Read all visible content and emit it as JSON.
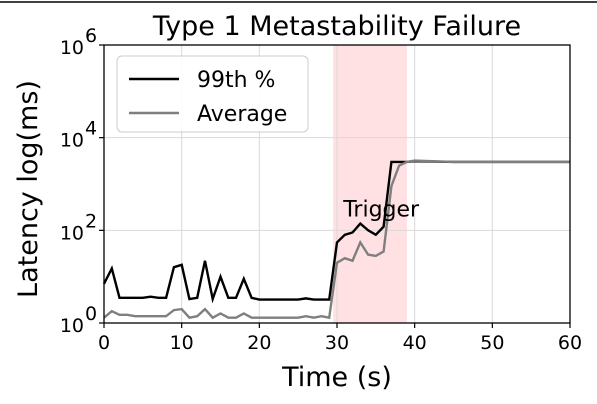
{
  "chart_data": {
    "type": "line",
    "title": "Type 1 Metastability Failure",
    "xlabel": "Time (s)",
    "ylabel": "Latency log(ms)",
    "xlim": [
      0,
      60
    ],
    "ylim": [
      1,
      1000000
    ],
    "yscale": "log",
    "xticks": [
      "0",
      "10",
      "20",
      "30",
      "40",
      "50",
      "60"
    ],
    "yticks": [
      {
        "value": 1,
        "base": "10",
        "exp": "0"
      },
      {
        "value": 100,
        "base": "10",
        "exp": "2"
      },
      {
        "value": 10000,
        "base": "10",
        "exp": "4"
      },
      {
        "value": 1000000,
        "base": "10",
        "exp": "6"
      }
    ],
    "grid": true,
    "legend_position": "top-left",
    "shaded_region": {
      "x0": 29.5,
      "x1": 39,
      "color": "#ffe0e3"
    },
    "annotations": [
      {
        "text": "Trigger",
        "x": 30.8,
        "y": 200
      }
    ],
    "series": [
      {
        "name": "99th %",
        "color": "#000000",
        "points": [
          [
            0,
            7
          ],
          [
            1,
            15
          ],
          [
            2,
            3.5
          ],
          [
            3,
            3.5
          ],
          [
            4,
            3.5
          ],
          [
            5,
            3.5
          ],
          [
            6,
            3.7
          ],
          [
            7,
            3.5
          ],
          [
            8,
            3.5
          ],
          [
            9,
            16
          ],
          [
            10,
            18
          ],
          [
            11,
            3.3
          ],
          [
            12,
            3.5
          ],
          [
            13,
            22
          ],
          [
            14,
            3.3
          ],
          [
            15,
            10
          ],
          [
            16,
            3.5
          ],
          [
            17,
            3.5
          ],
          [
            18,
            9
          ],
          [
            19,
            3.5
          ],
          [
            20,
            3.2
          ],
          [
            21,
            3.2
          ],
          [
            22,
            3.2
          ],
          [
            23,
            3.2
          ],
          [
            24,
            3.2
          ],
          [
            25,
            3.2
          ],
          [
            26,
            3.4
          ],
          [
            27,
            3.2
          ],
          [
            28,
            3.2
          ],
          [
            29,
            3.2
          ],
          [
            30,
            55
          ],
          [
            31,
            80
          ],
          [
            32,
            90
          ],
          [
            33,
            140
          ],
          [
            34,
            100
          ],
          [
            35,
            80
          ],
          [
            36,
            120
          ],
          [
            37,
            3000
          ],
          [
            38,
            3000
          ],
          [
            39,
            3000
          ],
          [
            40,
            3100
          ],
          [
            45,
            3000
          ],
          [
            50,
            3000
          ],
          [
            55,
            3000
          ],
          [
            60,
            3000
          ]
        ]
      },
      {
        "name": "Average",
        "color": "#7f7f7f",
        "points": [
          [
            0,
            1.3
          ],
          [
            1,
            1.8
          ],
          [
            2,
            1.5
          ],
          [
            3,
            1.5
          ],
          [
            4,
            1.4
          ],
          [
            5,
            1.4
          ],
          [
            6,
            1.4
          ],
          [
            7,
            1.4
          ],
          [
            8,
            1.4
          ],
          [
            9,
            1.9
          ],
          [
            10,
            2
          ],
          [
            11,
            1.3
          ],
          [
            12,
            1.4
          ],
          [
            13,
            2
          ],
          [
            14,
            1.3
          ],
          [
            15,
            1.6
          ],
          [
            16,
            1.3
          ],
          [
            17,
            1.3
          ],
          [
            18,
            1.6
          ],
          [
            19,
            1.3
          ],
          [
            20,
            1.3
          ],
          [
            21,
            1.3
          ],
          [
            22,
            1.3
          ],
          [
            23,
            1.3
          ],
          [
            24,
            1.3
          ],
          [
            25,
            1.3
          ],
          [
            26,
            1.4
          ],
          [
            27,
            1.3
          ],
          [
            28,
            1.4
          ],
          [
            29,
            1.3
          ],
          [
            30,
            20
          ],
          [
            31,
            25
          ],
          [
            32,
            22
          ],
          [
            33,
            55
          ],
          [
            34,
            30
          ],
          [
            35,
            28
          ],
          [
            36,
            35
          ],
          [
            37,
            900
          ],
          [
            38,
            2500
          ],
          [
            39,
            3000
          ],
          [
            40,
            3200
          ],
          [
            45,
            3000
          ],
          [
            50,
            3000
          ],
          [
            55,
            3000
          ],
          [
            60,
            3000
          ]
        ]
      }
    ]
  }
}
